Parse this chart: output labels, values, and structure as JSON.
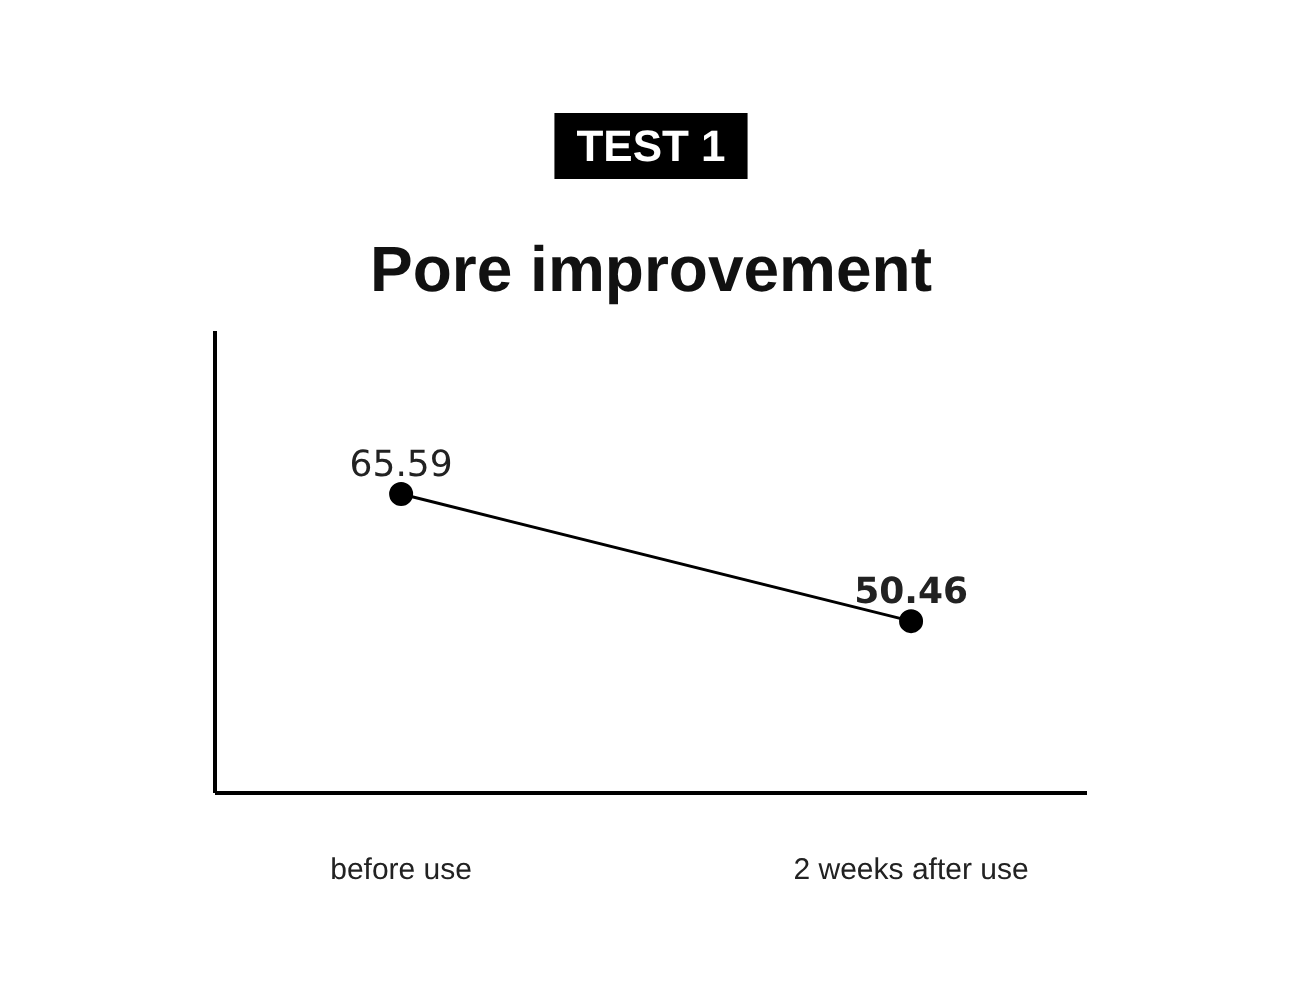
{
  "chart_data": {
    "type": "line",
    "title": "Pore improvement",
    "annotations": [
      "TEST 1"
    ],
    "categories": [
      "before use",
      "2 weeks after use"
    ],
    "series": [
      {
        "color": "#000000",
        "values": [
          65.59,
          50.46
        ]
      }
    ],
    "ylim": [
      30,
      85
    ],
    "data_labels": true,
    "marker": "circle",
    "line_style": "solid",
    "tick_labels": "x",
    "grid": false
  }
}
